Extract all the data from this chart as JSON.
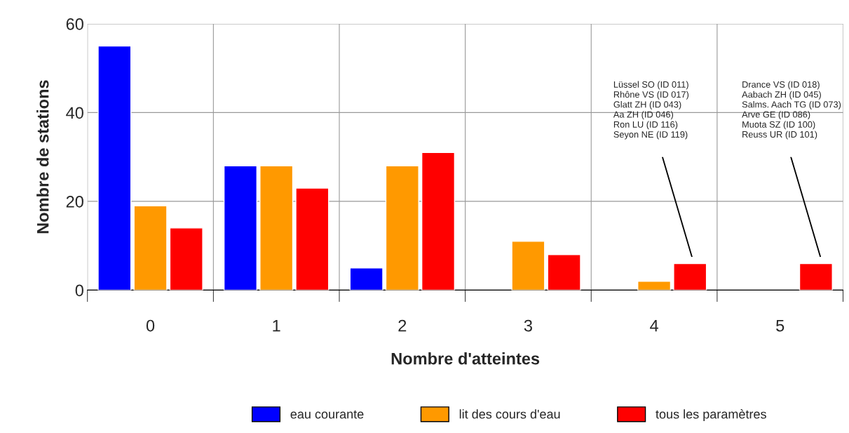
{
  "chart_data": {
    "type": "bar",
    "xlabel": "Nombre d'atteintes",
    "ylabel": "Nombre de stations",
    "categories": [
      "0",
      "1",
      "2",
      "3",
      "4",
      "5"
    ],
    "series": [
      {
        "name": "eau courante",
        "color": "#0000ff",
        "values": [
          55,
          28,
          5,
          null,
          null,
          null
        ]
      },
      {
        "name": "lit des cours d'eau",
        "color": "#ff9900",
        "values": [
          19,
          28,
          28,
          11,
          2,
          null
        ]
      },
      {
        "name": "tous les paramètres",
        "color": "#ff0000",
        "values": [
          14,
          23,
          31,
          8,
          6,
          6
        ]
      }
    ],
    "ylim": [
      0,
      60
    ],
    "yticks": [
      0,
      20,
      40,
      60
    ],
    "grid": true,
    "legend": "bottom",
    "annotations": [
      "Lüssel SO (ID 011)\nRhône VS (ID 017)\nGlatt ZH (ID 043)\nAa ZH (ID 046)\nRon LU (ID 116)\nSeyon NE (ID 119)",
      "Drance VS (ID 018)\nAabach ZH (ID 045)\nSalms. Aach TG (ID 073)\nArve GE (ID 086)\nMuota SZ (ID 100)\nReuss UR (ID 101)"
    ]
  }
}
